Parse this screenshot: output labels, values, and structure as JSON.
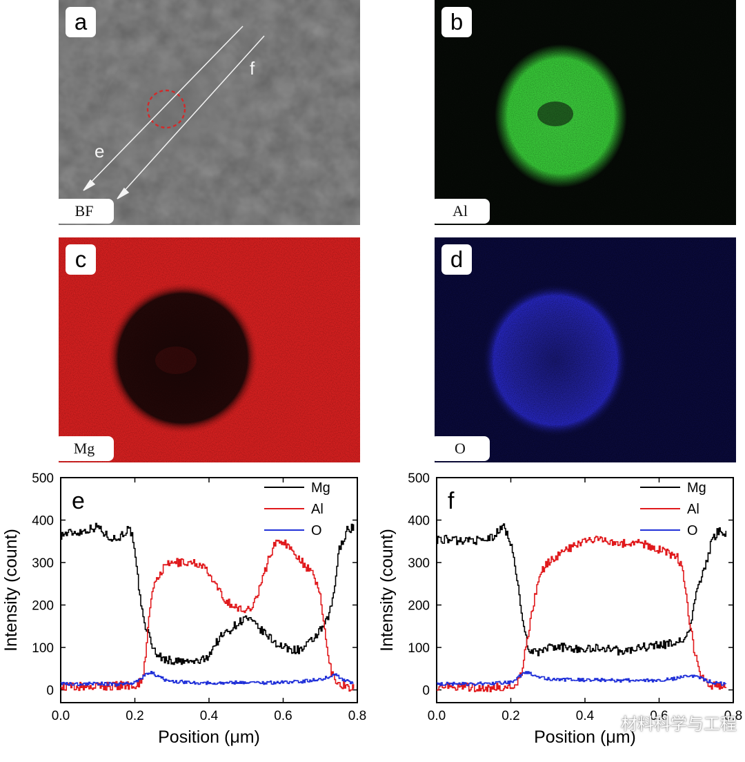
{
  "panels": {
    "a": {
      "letter": "a",
      "tag": "BF",
      "line_labels": [
        "e",
        "f"
      ]
    },
    "b": {
      "letter": "b",
      "tag": "Al"
    },
    "c": {
      "letter": "c",
      "tag": "Mg"
    },
    "d": {
      "letter": "d",
      "tag": "O"
    }
  },
  "colors": {
    "Mg": "#000000",
    "Al": "#e0181b",
    "O": "#1f2fd8",
    "map_Al": "#33c233",
    "map_Mg": "#d42020",
    "map_O": "#2a2ad6"
  },
  "chart_data": [
    {
      "type": "line",
      "panel_label": "e",
      "xlabel": "Position (μm)",
      "ylabel": "Intensity (count)",
      "xlim": [
        0,
        0.8
      ],
      "ylim": [
        -30,
        500
      ],
      "xticks": [
        "0.0",
        "0.2",
        "0.4",
        "0.6",
        "0.8"
      ],
      "yticks": [
        "0",
        "100",
        "200",
        "300",
        "400",
        "500"
      ],
      "legend": "top-right",
      "series": [
        {
          "name": "Mg",
          "x": [
            0,
            0.02,
            0.05,
            0.08,
            0.1,
            0.12,
            0.15,
            0.18,
            0.19,
            0.2,
            0.21,
            0.22,
            0.23,
            0.24,
            0.25,
            0.27,
            0.3,
            0.33,
            0.36,
            0.39,
            0.41,
            0.43,
            0.46,
            0.48,
            0.5,
            0.52,
            0.54,
            0.56,
            0.58,
            0.6,
            0.62,
            0.65,
            0.67,
            0.69,
            0.71,
            0.72,
            0.73,
            0.74,
            0.75,
            0.77,
            0.79
          ],
          "y": [
            365,
            370,
            372,
            380,
            385,
            365,
            355,
            378,
            370,
            310,
            240,
            175,
            145,
            120,
            95,
            75,
            68,
            66,
            66,
            72,
            100,
            125,
            145,
            160,
            170,
            155,
            140,
            125,
            110,
            100,
            95,
            95,
            110,
            130,
            150,
            170,
            200,
            260,
            330,
            375,
            385
          ]
        },
        {
          "name": "Al",
          "x": [
            0,
            0.05,
            0.1,
            0.15,
            0.2,
            0.21,
            0.22,
            0.23,
            0.24,
            0.25,
            0.26,
            0.28,
            0.3,
            0.32,
            0.35,
            0.38,
            0.4,
            0.42,
            0.44,
            0.46,
            0.48,
            0.5,
            0.52,
            0.54,
            0.56,
            0.58,
            0.6,
            0.62,
            0.64,
            0.66,
            0.68,
            0.7,
            0.71,
            0.72,
            0.73,
            0.74,
            0.75,
            0.77,
            0.79
          ],
          "y": [
            8,
            8,
            8,
            10,
            12,
            15,
            30,
            100,
            200,
            240,
            265,
            290,
            300,
            300,
            300,
            295,
            270,
            240,
            215,
            200,
            190,
            185,
            205,
            250,
            310,
            350,
            350,
            330,
            315,
            290,
            270,
            220,
            150,
            80,
            40,
            25,
            15,
            8,
            5
          ]
        },
        {
          "name": "O",
          "x": [
            0,
            0.05,
            0.1,
            0.15,
            0.2,
            0.22,
            0.24,
            0.26,
            0.28,
            0.3,
            0.35,
            0.4,
            0.45,
            0.5,
            0.55,
            0.6,
            0.65,
            0.7,
            0.72,
            0.74,
            0.76,
            0.79
          ],
          "y": [
            14,
            14,
            15,
            13,
            18,
            30,
            42,
            32,
            24,
            20,
            18,
            16,
            17,
            18,
            17,
            18,
            20,
            25,
            30,
            36,
            25,
            15
          ]
        }
      ]
    },
    {
      "type": "line",
      "panel_label": "f",
      "xlabel": "Position (μm)",
      "ylabel": "Intensity (count)",
      "xlim": [
        0,
        0.8
      ],
      "ylim": [
        -30,
        500
      ],
      "xticks": [
        "0.0",
        "0.2",
        "0.4",
        "0.6",
        "0.8"
      ],
      "yticks": [
        "0",
        "100",
        "200",
        "300",
        "400",
        "500"
      ],
      "legend": "top-right",
      "series": [
        {
          "name": "Mg",
          "x": [
            0,
            0.03,
            0.06,
            0.09,
            0.12,
            0.15,
            0.18,
            0.2,
            0.21,
            0.22,
            0.23,
            0.24,
            0.25,
            0.27,
            0.3,
            0.35,
            0.4,
            0.45,
            0.5,
            0.55,
            0.6,
            0.64,
            0.66,
            0.68,
            0.69,
            0.7,
            0.71,
            0.72,
            0.73,
            0.74,
            0.76,
            0.78
          ],
          "y": [
            355,
            355,
            350,
            355,
            350,
            360,
            385,
            345,
            300,
            230,
            170,
            120,
            95,
            85,
            100,
            100,
            95,
            100,
            90,
            100,
            105,
            110,
            115,
            140,
            180,
            230,
            260,
            280,
            310,
            350,
            375,
            370
          ]
        },
        {
          "name": "Al",
          "x": [
            0,
            0.05,
            0.1,
            0.15,
            0.2,
            0.22,
            0.23,
            0.24,
            0.25,
            0.26,
            0.27,
            0.28,
            0.3,
            0.33,
            0.36,
            0.4,
            0.45,
            0.5,
            0.55,
            0.6,
            0.63,
            0.65,
            0.66,
            0.67,
            0.68,
            0.69,
            0.7,
            0.71,
            0.72,
            0.74,
            0.76,
            0.78
          ],
          "y": [
            8,
            8,
            6,
            5,
            8,
            20,
            50,
            100,
            150,
            200,
            245,
            280,
            300,
            320,
            335,
            350,
            355,
            345,
            345,
            330,
            320,
            310,
            290,
            240,
            170,
            110,
            70,
            40,
            20,
            10,
            6,
            5
          ]
        },
        {
          "name": "O",
          "x": [
            0,
            0.05,
            0.1,
            0.15,
            0.2,
            0.22,
            0.24,
            0.26,
            0.28,
            0.3,
            0.35,
            0.4,
            0.45,
            0.5,
            0.55,
            0.6,
            0.65,
            0.67,
            0.7,
            0.72,
            0.74,
            0.76,
            0.78
          ],
          "y": [
            14,
            15,
            14,
            16,
            18,
            30,
            42,
            35,
            30,
            26,
            24,
            23,
            24,
            22,
            24,
            22,
            28,
            35,
            30,
            25,
            18,
            15,
            15
          ]
        }
      ]
    }
  ],
  "watermark": "材料科学与工程"
}
